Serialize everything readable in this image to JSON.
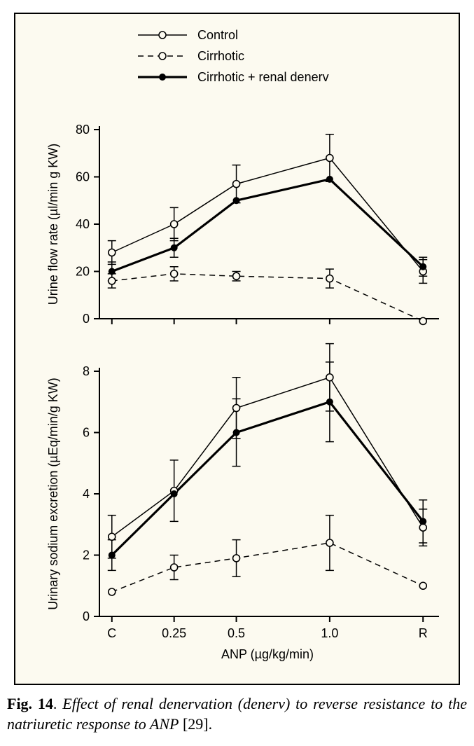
{
  "background_color": "#fcfaf0",
  "frame_border_color": "#000000",
  "legend": {
    "items": [
      {
        "label": "Control",
        "marker": "open-circle",
        "line_style": "solid-thin",
        "color": "#000000"
      },
      {
        "label": "Cirrhotic",
        "marker": "open-circle",
        "line_style": "dashed",
        "color": "#000000"
      },
      {
        "label": "Cirrhotic + renal denerv",
        "marker": "filled-circle",
        "line_style": "solid-thick",
        "color": "#000000"
      }
    ],
    "fontsize": 18
  },
  "x_axis": {
    "label": "ANP (µg/kg/min)",
    "tick_labels": [
      "C",
      "0.25",
      "0.5",
      "1.0",
      "R"
    ],
    "tick_positions": [
      0,
      1,
      2,
      3.5,
      5
    ],
    "range": [
      -0.2,
      5.2
    ],
    "label_fontsize": 18,
    "tick_fontsize": 18
  },
  "top_chart": {
    "ylabel": "Urine flow rate (µl/min g KW)",
    "ylim": [
      0,
      80
    ],
    "ytick_step": 20,
    "axis_color": "#000000",
    "tick_color": "#000000",
    "label_fontsize": 18,
    "tick_fontsize": 18,
    "series": {
      "control": {
        "y": [
          28,
          40,
          57,
          68,
          20
        ],
        "err": [
          5,
          7,
          8,
          10,
          5
        ],
        "show_err": [
          true,
          true,
          true,
          true,
          true
        ]
      },
      "cirrhotic": {
        "y": [
          16,
          19,
          18,
          17,
          -1
        ],
        "err": [
          3,
          3,
          2,
          4,
          0
        ],
        "show_err": [
          true,
          true,
          true,
          true,
          false
        ]
      },
      "denerv": {
        "y": [
          20,
          30,
          50,
          59,
          22
        ],
        "err": [
          4,
          4,
          5,
          6,
          4
        ],
        "show_err": [
          true,
          true,
          false,
          false,
          true
        ]
      }
    }
  },
  "bottom_chart": {
    "ylabel": "Urinary sodium excretion (µEq/min/g KW)",
    "ylim": [
      0,
      8
    ],
    "ytick_step": 2,
    "axis_color": "#000000",
    "tick_color": "#000000",
    "label_fontsize": 18,
    "tick_fontsize": 18,
    "series": {
      "control": {
        "y": [
          2.6,
          4.1,
          6.8,
          7.8,
          2.9
        ],
        "err": [
          0.7,
          1.0,
          1.0,
          1.1,
          0.6
        ],
        "show_err": [
          true,
          true,
          true,
          true,
          true
        ]
      },
      "cirrhotic": {
        "y": [
          0.8,
          1.6,
          1.9,
          2.4,
          1.0
        ],
        "err": [
          0.2,
          0.4,
          0.6,
          0.9,
          0.3
        ],
        "show_err": [
          false,
          true,
          true,
          true,
          false
        ]
      },
      "denerv": {
        "y": [
          2.0,
          4.0,
          6.0,
          7.0,
          3.1
        ],
        "err": [
          0.5,
          0.6,
          1.1,
          1.3,
          0.7
        ],
        "show_err": [
          true,
          false,
          true,
          true,
          true
        ]
      }
    }
  },
  "styles": {
    "open_marker_radius": 5,
    "filled_marker_radius": 5,
    "thin_line_width": 1.5,
    "thick_line_width": 3.2,
    "dash_pattern": "8,6",
    "error_cap_half": 6,
    "error_line_width": 1.5,
    "axis_line_width": 2,
    "tick_length": 8
  },
  "caption": {
    "label": "Fig. 14",
    "text_italic": "Effect of renal denervation (denerv) to reverse resistance to the natriuretic response to ANP",
    "ref": "[29]."
  }
}
